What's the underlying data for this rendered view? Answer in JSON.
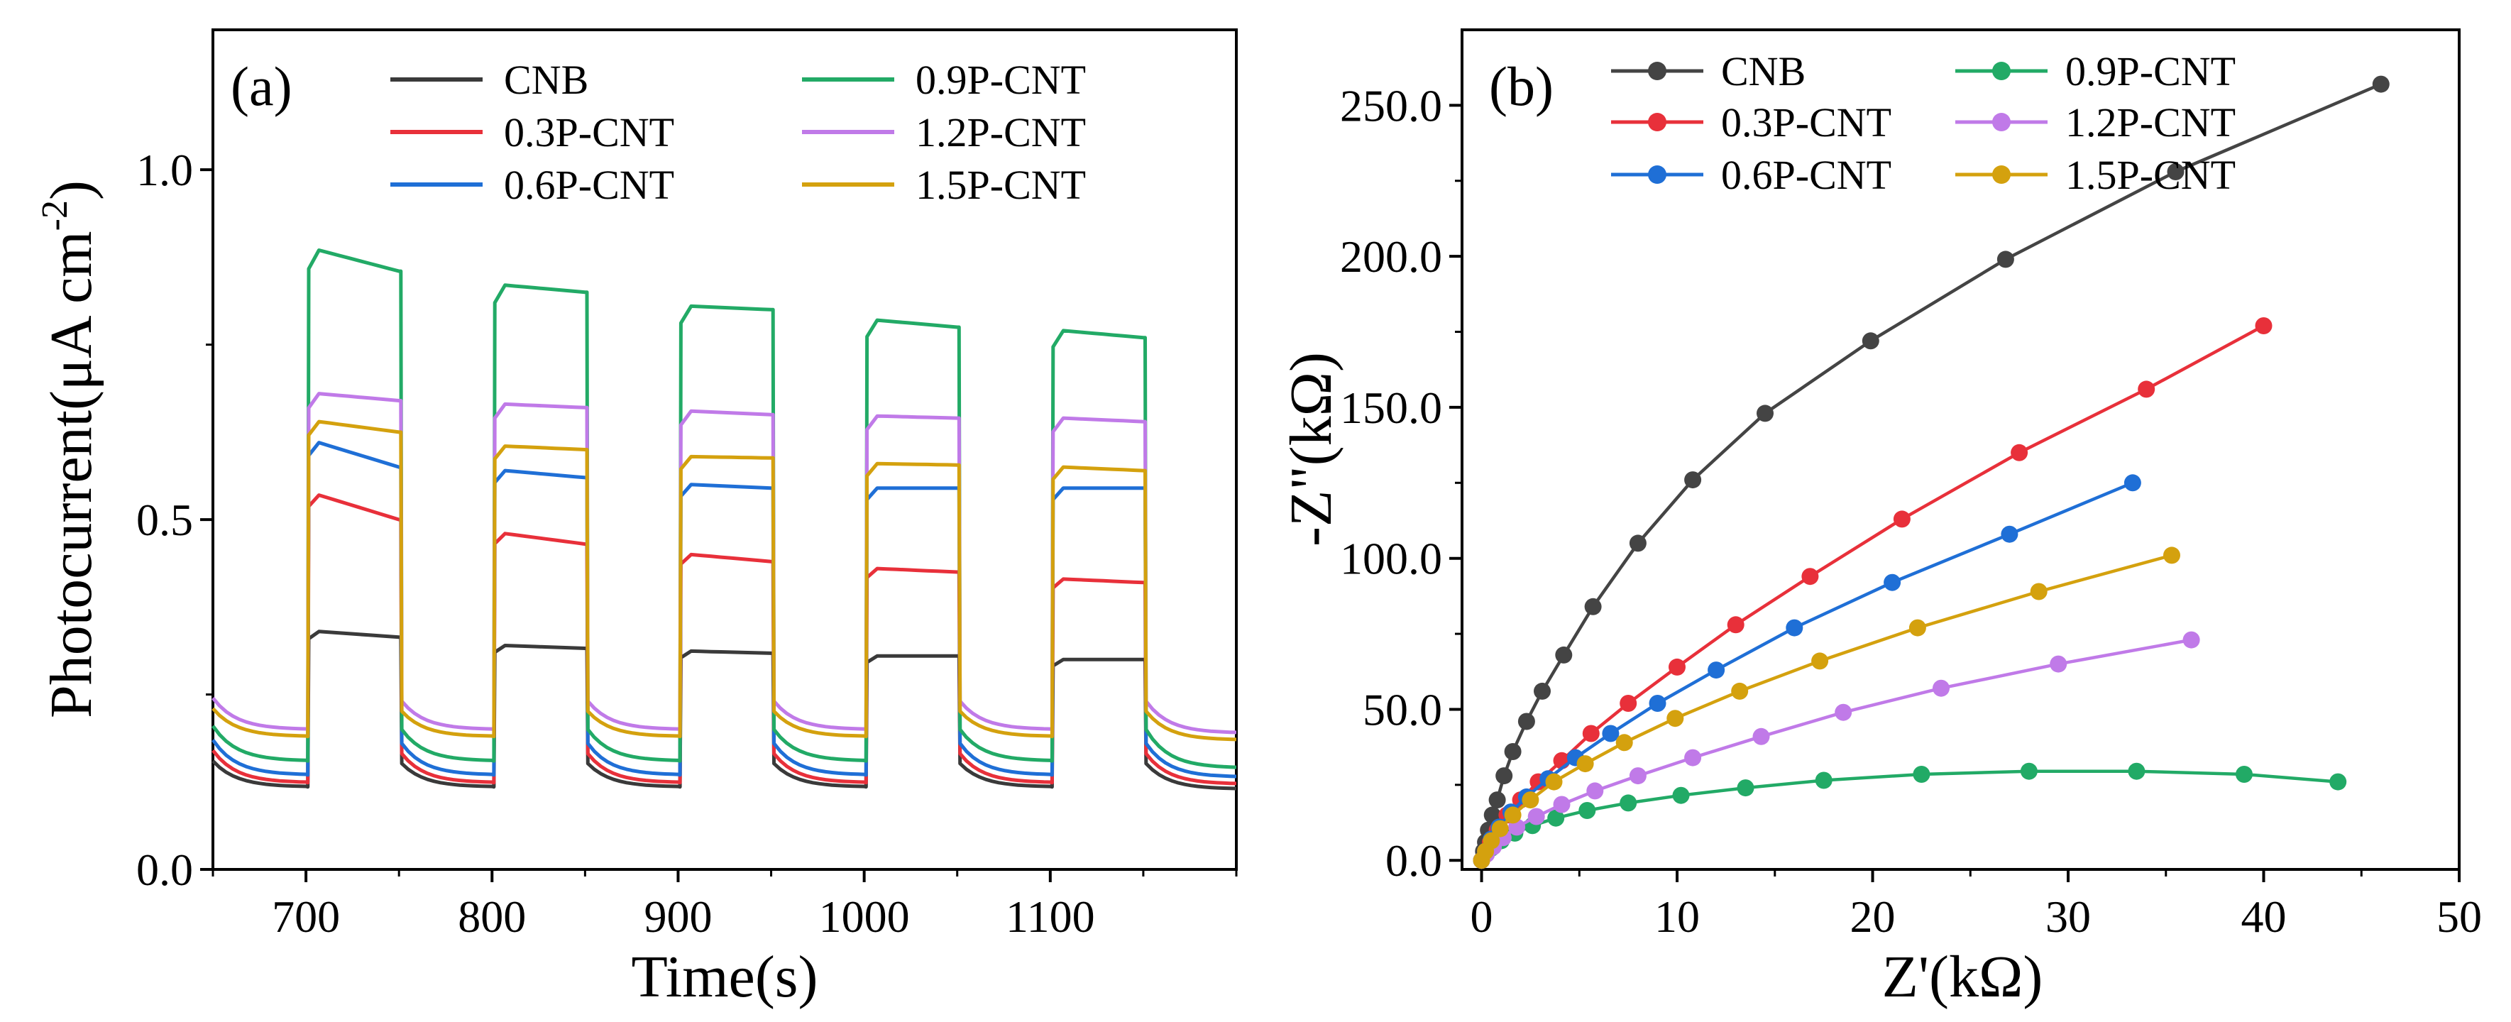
{
  "chart_data": [
    {
      "panel": "(a)",
      "type": "line",
      "title": "",
      "xlabel": "Time(s)",
      "ylabel_main": "Photocurrent(μA cm",
      "ylabel_exp": "-2",
      "ylabel_close": ")",
      "xlim": [
        650,
        1200
      ],
      "ylim": [
        0.0,
        1.2
      ],
      "xticks": [
        700,
        800,
        900,
        1000,
        1100
      ],
      "xtick_labels": [
        "700",
        "800",
        "900",
        "1000",
        "1100"
      ],
      "yticks": [
        0.0,
        0.5,
        1.0
      ],
      "ytick_labels": [
        "0.0",
        "0.5",
        "1.0"
      ],
      "on_intervals": [
        [
          701,
          751
        ],
        [
          801,
          851
        ],
        [
          901,
          951
        ],
        [
          1001,
          1051
        ],
        [
          1101,
          1151
        ]
      ],
      "legend": "top, two columns",
      "series": [
        {
          "name": "CNB",
          "color": "#3a3a3a",
          "start_dark": 0.155,
          "end_dark": 0.118,
          "end_dark_last": 0.115,
          "peaks": [
            0.34,
            0.32,
            0.312,
            0.305,
            0.3
          ],
          "plateau_end": [
            0.332,
            0.316,
            0.309,
            0.305,
            0.3
          ]
        },
        {
          "name": "0.3P-CNT",
          "color": "#e8303a",
          "start_dark": 0.17,
          "end_dark": 0.124,
          "end_dark_last": 0.122,
          "peaks": [
            0.535,
            0.48,
            0.45,
            0.43,
            0.415
          ],
          "plateau_end": [
            0.5,
            0.465,
            0.44,
            0.425,
            0.41
          ]
        },
        {
          "name": "0.6P-CNT",
          "color": "#1f6fd6",
          "start_dark": 0.185,
          "end_dark": 0.135,
          "end_dark_last": 0.132,
          "peaks": [
            0.61,
            0.57,
            0.55,
            0.545,
            0.545
          ],
          "plateau_end": [
            0.575,
            0.56,
            0.545,
            0.545,
            0.545
          ]
        },
        {
          "name": "0.9P-CNT",
          "color": "#22aa66",
          "start_dark": 0.205,
          "end_dark": 0.155,
          "end_dark_last": 0.145,
          "peaks": [
            0.885,
            0.835,
            0.805,
            0.785,
            0.77
          ],
          "plateau_end": [
            0.855,
            0.825,
            0.8,
            0.775,
            0.76
          ]
        },
        {
          "name": "1.2P-CNT",
          "color": "#c07ae8",
          "start_dark": 0.245,
          "end_dark": 0.2,
          "end_dark_last": 0.195,
          "peaks": [
            0.68,
            0.665,
            0.655,
            0.648,
            0.645
          ],
          "plateau_end": [
            0.67,
            0.66,
            0.65,
            0.645,
            0.64
          ]
        },
        {
          "name": "1.5P-CNT",
          "color": "#d4a10e",
          "start_dark": 0.23,
          "end_dark": 0.19,
          "end_dark_last": 0.185,
          "peaks": [
            0.64,
            0.605,
            0.59,
            0.58,
            0.575
          ],
          "plateau_end": [
            0.625,
            0.6,
            0.588,
            0.578,
            0.57
          ]
        }
      ]
    },
    {
      "panel": "(b)",
      "type": "scatter",
      "title": "",
      "xlabel": "Z'(kΩ)",
      "ylabel": "-Z\"(kΩ)",
      "xlim": [
        -1,
        50
      ],
      "ylim": [
        -3,
        275
      ],
      "xticks": [
        0,
        10,
        20,
        30,
        40,
        50
      ],
      "xtick_labels": [
        "0",
        "10",
        "20",
        "30",
        "40",
        "50"
      ],
      "yticks": [
        0,
        50,
        100,
        150,
        200,
        250
      ],
      "ytick_labels": [
        "0.0",
        "50.0",
        "100.0",
        "150.0",
        "200.0",
        "250.0"
      ],
      "legend": "top-left, two columns",
      "series": [
        {
          "name": "CNB",
          "color": "#444444",
          "x": [
            0,
            0.1,
            0.2,
            0.35,
            0.55,
            0.8,
            1.15,
            1.6,
            2.3,
            3.1,
            4.2,
            5.7,
            8.0,
            10.8,
            14.5,
            19.9,
            26.8,
            35.5,
            46.0
          ],
          "y": [
            0,
            3,
            6,
            10,
            15,
            20,
            28,
            36,
            46,
            56,
            68,
            84,
            105,
            126,
            148,
            172,
            199,
            228,
            257
          ]
        },
        {
          "name": "0.3P-CNT",
          "color": "#e8303a",
          "x": [
            0,
            0.2,
            0.45,
            0.8,
            1.3,
            2.0,
            2.9,
            4.1,
            5.6,
            7.5,
            10.0,
            13.0,
            16.8,
            21.5,
            27.5,
            34.0,
            40.0
          ],
          "y": [
            0,
            3,
            6,
            10,
            15,
            20,
            26,
            33,
            42,
            52,
            64,
            78,
            94,
            113,
            135,
            156,
            177
          ]
        },
        {
          "name": "0.6P-CNT",
          "color": "#1f6fd6",
          "x": [
            0,
            0.2,
            0.5,
            0.9,
            1.5,
            2.3,
            3.4,
            4.8,
            6.6,
            9.0,
            12.0,
            16.0,
            21.0,
            27.0,
            33.3
          ],
          "y": [
            0,
            3,
            7,
            11,
            16,
            21,
            27,
            34,
            42,
            52,
            63,
            77,
            92,
            108,
            125
          ]
        },
        {
          "name": "0.9P-CNT",
          "color": "#22aa66",
          "x": [
            0,
            0.2,
            0.5,
            1.0,
            1.7,
            2.6,
            3.8,
            5.4,
            7.5,
            10.2,
            13.5,
            17.5,
            22.5,
            28.0,
            33.5,
            39.0,
            43.8
          ],
          "y": [
            0,
            2,
            4,
            6.5,
            9,
            11.5,
            14,
            16.5,
            19,
            21.5,
            24,
            26.5,
            28.5,
            29.5,
            29.5,
            28.5,
            26
          ]
        },
        {
          "name": "1.2P-CNT",
          "color": "#c07ae8",
          "x": [
            0,
            0.25,
            0.6,
            1.1,
            1.8,
            2.8,
            4.1,
            5.8,
            8.0,
            10.8,
            14.3,
            18.5,
            23.5,
            29.5,
            36.3
          ],
          "y": [
            0,
            2,
            4.5,
            7.5,
            11,
            14.5,
            18.5,
            23,
            28,
            34,
            41,
            49,
            57,
            65,
            73
          ]
        },
        {
          "name": "1.5P-CNT",
          "color": "#d4a10e",
          "x": [
            0,
            0.2,
            0.5,
            0.95,
            1.6,
            2.5,
            3.7,
            5.3,
            7.3,
            9.9,
            13.2,
            17.3,
            22.3,
            28.5,
            35.3
          ],
          "y": [
            0,
            3,
            6.5,
            10.5,
            15,
            20,
            26,
            32,
            39,
            47,
            56,
            66,
            77,
            89,
            101
          ]
        }
      ]
    }
  ]
}
